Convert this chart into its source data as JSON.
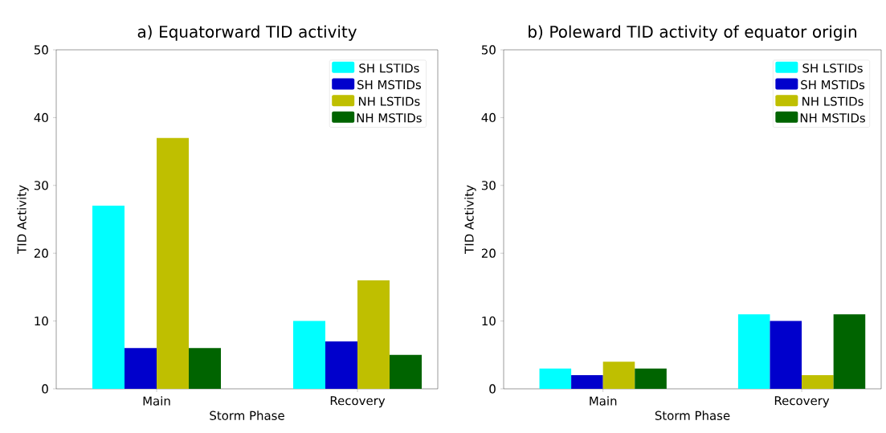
{
  "chart_data": [
    {
      "type": "bar",
      "title": "a) Equatorward TID activity",
      "xlabel": "Storm Phase",
      "ylabel": "TID Activity",
      "categories": [
        "Main",
        "Recovery"
      ],
      "series": [
        {
          "name": "SH LSTIDs",
          "color": "#00ffff",
          "values": [
            27,
            10
          ]
        },
        {
          "name": "SH MSTIDs",
          "color": "#0000cc",
          "values": [
            6,
            7
          ]
        },
        {
          "name": "NH LSTIDs",
          "color": "#bfbf00",
          "values": [
            37,
            16
          ]
        },
        {
          "name": "NH MSTIDs",
          "color": "#006400",
          "values": [
            6,
            5
          ]
        }
      ],
      "ylim": [
        0,
        50
      ],
      "yticks": [
        0,
        10,
        20,
        30,
        40,
        50
      ],
      "legend": "top right"
    },
    {
      "type": "bar",
      "title": "b) Poleward TID activity of equator origin",
      "xlabel": "Storm Phase",
      "ylabel": "TID Activity",
      "categories": [
        "Main",
        "Recovery"
      ],
      "series": [
        {
          "name": "SH LSTIDs",
          "color": "#00ffff",
          "values": [
            3,
            11
          ]
        },
        {
          "name": "SH MSTIDs",
          "color": "#0000cc",
          "values": [
            2,
            10
          ]
        },
        {
          "name": "NH LSTIDs",
          "color": "#bfbf00",
          "values": [
            4,
            2
          ]
        },
        {
          "name": "NH MSTIDs",
          "color": "#006400",
          "values": [
            3,
            11
          ]
        }
      ],
      "ylim": [
        0,
        50
      ],
      "yticks": [
        0,
        10,
        20,
        30,
        40,
        50
      ],
      "legend": "top right"
    }
  ]
}
